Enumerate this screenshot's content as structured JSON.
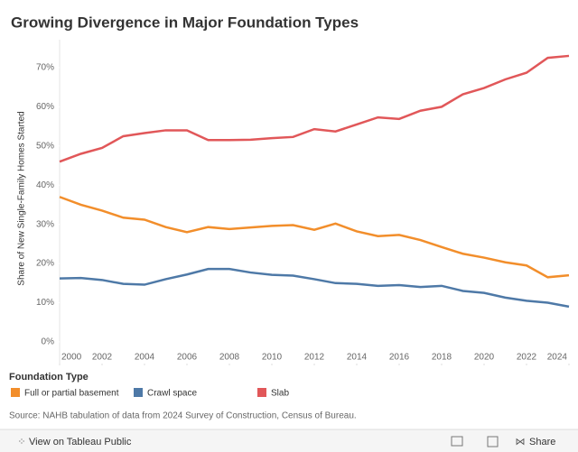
{
  "chart_data": {
    "type": "line",
    "title": "Growing Divergence in Major Foundation Types",
    "y_label": "Share of New Single-Family Homes Started",
    "x": [
      2000,
      2001,
      2002,
      2003,
      2004,
      2005,
      2006,
      2007,
      2008,
      2009,
      2010,
      2011,
      2012,
      2013,
      2014,
      2015,
      2016,
      2017,
      2018,
      2019,
      2020,
      2021,
      2022,
      2023,
      2024
    ],
    "series": [
      {
        "name": "Full or partial basement",
        "color": "#f28e2b",
        "values": [
          37,
          35,
          33.5,
          31.7,
          31.2,
          29.3,
          28,
          29.3,
          28.8,
          29.2,
          29.6,
          29.8,
          28.6,
          30.2,
          28.2,
          27,
          27.3,
          26,
          24.2,
          22.5,
          21.5,
          20.3,
          19.5,
          16.5,
          17
        ]
      },
      {
        "name": "Crawl space",
        "color": "#4e79a7",
        "values": [
          16.2,
          16.3,
          15.8,
          14.8,
          14.6,
          16,
          17.2,
          18.6,
          18.6,
          17.7,
          17.1,
          16.9,
          16,
          15,
          14.8,
          14.3,
          14.5,
          14,
          14.3,
          13,
          12.5,
          11.3,
          10.5,
          10,
          9
        ]
      },
      {
        "name": "Slab",
        "color": "#e15759",
        "values": [
          46,
          48,
          49.5,
          52.5,
          53.3,
          54,
          54,
          51.5,
          51.5,
          51.6,
          52,
          52.3,
          54.3,
          53.7,
          55.5,
          57.3,
          56.9,
          59,
          60,
          63.2,
          64.8,
          67,
          68.7,
          72.5,
          73
        ]
      }
    ],
    "xlim": [
      2000,
      2024
    ],
    "xticks": [
      2000,
      2002,
      2004,
      2006,
      2008,
      2010,
      2012,
      2014,
      2016,
      2018,
      2020,
      2022,
      2024
    ],
    "ylim": [
      -3.7,
      76.9
    ],
    "yticks": [
      {
        "value": 0,
        "label": "0%"
      },
      {
        "value": 10,
        "label": "10%"
      },
      {
        "value": 20,
        "label": "20%"
      },
      {
        "value": 30,
        "label": "30%"
      },
      {
        "value": 40,
        "label": "40%"
      },
      {
        "value": 50,
        "label": "50%"
      },
      {
        "value": 60,
        "label": "60%"
      },
      {
        "value": 70,
        "label": "70%"
      }
    ],
    "legend_title": "Foundation Type",
    "source": "Source: NAHB tabulation of data from 2024 Survey of Construction, Census of Bureau."
  },
  "footer": {
    "view_link": "View on Tableau Public",
    "share": "Share"
  }
}
